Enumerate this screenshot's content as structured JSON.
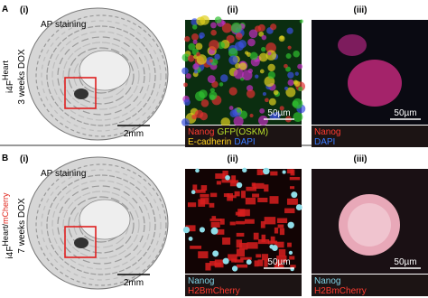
{
  "panels": [
    {
      "label": "A",
      "condition": {
        "genotype": "i4F",
        "superscript": [
          {
            "text": "Heart",
            "color": "#000000"
          }
        ],
        "duration": "3 weeks DOX"
      },
      "subpanels": [
        {
          "label": "(i)",
          "title": "AP staining",
          "scale_bar": "2mm"
        },
        {
          "label": "(ii)",
          "scale_bar": "50µm",
          "legend": [
            [
              {
                "text": "Nanog",
                "color": "#ff3b30"
              },
              {
                "text": "GFP(OSKM)",
                "color": "#b8e02a"
              }
            ],
            [
              {
                "text": "E-cadherin",
                "color": "#ffd21f"
              },
              {
                "text": "DAPI",
                "color": "#3a7bff"
              }
            ]
          ]
        },
        {
          "label": "(iii)",
          "scale_bar": "50µm",
          "legend": [
            [
              {
                "text": "Nanog",
                "color": "#ff3b30"
              }
            ],
            [
              {
                "text": "DAPI",
                "color": "#3a7bff"
              }
            ]
          ]
        }
      ]
    },
    {
      "label": "B",
      "condition": {
        "genotype": "i4F",
        "superscript": [
          {
            "text": "Heart/",
            "color": "#000000"
          },
          {
            "text": "mCherry",
            "color": "#e0241b"
          }
        ],
        "duration": "7 weeks DOX"
      },
      "subpanels": [
        {
          "label": "(i)",
          "title": "AP staining",
          "scale_bar": "2mm"
        },
        {
          "label": "(ii)",
          "scale_bar": "50µm",
          "legend": [
            [
              {
                "text": "Nanog",
                "color": "#7fd3e6"
              }
            ],
            [
              {
                "text": "H2BmCherry",
                "color": "#ff3b30"
              }
            ]
          ]
        },
        {
          "label": "(iii)",
          "scale_bar": "50µm",
          "legend": [
            [
              {
                "text": "Nanog",
                "color": "#7fd3e6"
              }
            ],
            [
              {
                "text": "H2BmCherry",
                "color": "#ff3b30"
              }
            ]
          ]
        }
      ]
    }
  ]
}
